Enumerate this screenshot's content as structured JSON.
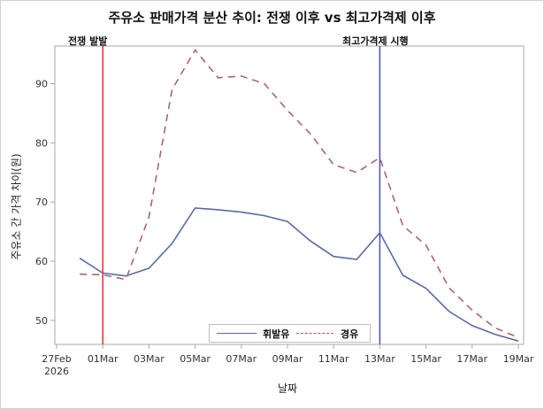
{
  "chart_data": {
    "type": "line",
    "title": "주유소 판매가격 분산 추이: 전쟁 이후 vs 최고가격제 이후",
    "xlabel": "날짜",
    "ylabel": "주유소 간 가격 차이(원)",
    "x_tick_labels": [
      "27Feb\n2026",
      "01Mar",
      "03Mar",
      "05Mar",
      "07Mar",
      "09Mar",
      "11Mar",
      "13Mar",
      "15Mar",
      "17Mar",
      "19Mar"
    ],
    "x": [
      "28Feb",
      "01Mar",
      "02Mar",
      "03Mar",
      "04Mar",
      "05Mar",
      "06Mar",
      "07Mar",
      "08Mar",
      "09Mar",
      "10Mar",
      "11Mar",
      "12Mar",
      "13Mar",
      "14Mar",
      "15Mar",
      "16Mar",
      "17Mar",
      "18Mar",
      "19Mar"
    ],
    "series": [
      {
        "name": "휘발유",
        "style": "solid",
        "color": "#5b6aa6",
        "values": [
          60.5,
          58.0,
          57.5,
          58.8,
          63.0,
          69.0,
          68.7,
          68.3,
          67.7,
          66.7,
          63.4,
          60.8,
          60.3,
          64.8,
          57.6,
          55.4,
          51.5,
          49.1,
          47.6,
          46.5
        ]
      },
      {
        "name": "경유",
        "style": "dashed",
        "color": "#c0504d",
        "values": [
          57.8,
          57.7,
          56.9,
          67.5,
          89.0,
          95.7,
          91.0,
          91.3,
          90.0,
          85.5,
          81.5,
          76.3,
          75.0,
          77.5,
          66.0,
          62.7,
          55.5,
          51.7,
          48.7,
          47.1
        ]
      }
    ],
    "y_ticks": [
      50,
      60,
      70,
      80,
      90
    ],
    "ylim": [
      46,
      97
    ],
    "xlim": [
      "27Feb",
      "19Mar"
    ],
    "grid": false,
    "legend_position": "bottom-inside",
    "reference_lines": [
      {
        "x": "01Mar",
        "label": "전쟁 발발",
        "color": "#e0302e"
      },
      {
        "x": "13Mar",
        "label": "최고가격제 시행",
        "color": "#4b4fc4"
      }
    ]
  },
  "ref_labels": {
    "war": "전쟁 발발",
    "cap": "최고가격제 시행"
  },
  "legend": {
    "gasoline": "휘발유",
    "diesel": "경유"
  }
}
